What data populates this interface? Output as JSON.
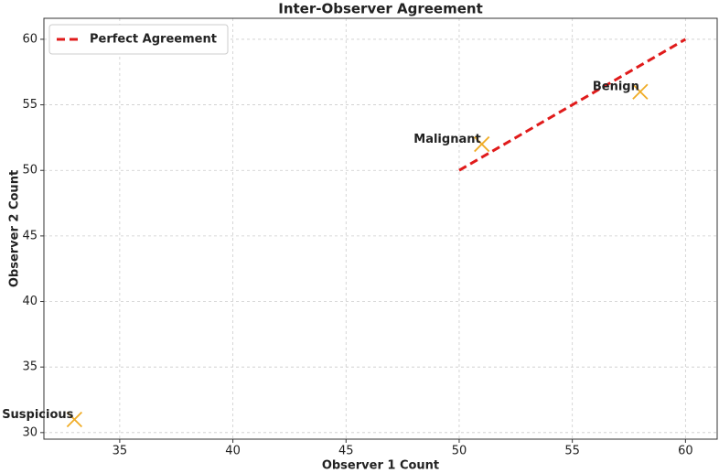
{
  "chart_data": {
    "type": "scatter",
    "title": "Inter-Observer Agreement",
    "xlabel": "Observer 1 Count",
    "ylabel": "Observer 2 Count",
    "labels": [
      "Suspicious",
      "Malignant",
      "Benign"
    ],
    "x": [
      33,
      51,
      58
    ],
    "y": [
      31,
      52,
      56
    ],
    "color": "#f0ad28",
    "marker": "x",
    "line": {
      "name": "Perfect Agreement",
      "color": "#e01b1b",
      "x": [
        50,
        60
      ],
      "y": [
        50,
        60
      ]
    },
    "xlim": [
      31.65,
      61.4
    ],
    "ylim": [
      29.5,
      61.6
    ],
    "xticks": [
      35,
      40,
      45,
      50,
      55,
      60
    ],
    "yticks": [
      30,
      35,
      40,
      45,
      50,
      55,
      60
    ],
    "grid": true,
    "legend": "upper left"
  }
}
